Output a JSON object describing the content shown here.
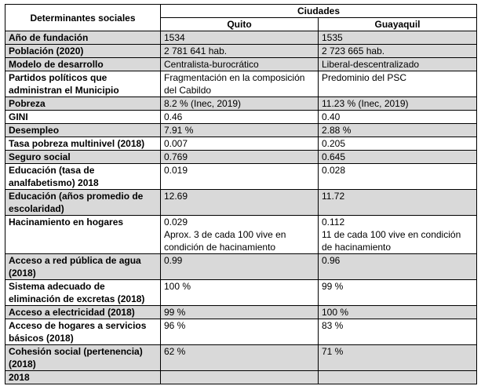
{
  "colors": {
    "row_shade": "#d9d9d9",
    "border": "#000000",
    "text": "#000000"
  },
  "table": {
    "header": {
      "col1": "Determinantes sociales",
      "group": "Ciudades",
      "city1": "Quito",
      "city2": "Guayaquil"
    },
    "rows": [
      {
        "label": "Año de fundación",
        "quito": "1534",
        "guayaquil": "1535"
      },
      {
        "label": "Población (2020)",
        "quito": "2 781 641 hab.",
        "guayaquil": "2 723 665 hab."
      },
      {
        "label": "Modelo de desarrollo",
        "quito": "Centralista-burocrático",
        "guayaquil": "Liberal-descentralizado"
      },
      {
        "label": "Partidos políticos que administran el Municipio",
        "quito": "Fragmentación en la composición del Cabildo",
        "guayaquil": "Predominio del PSC"
      },
      {
        "label": "Pobreza",
        "quito": "8.2 % (Inec, 2019)",
        "guayaquil": "11.23 % (Inec, 2019)"
      },
      {
        "label": "GINI",
        "quito": "0.46",
        "guayaquil": "0.40"
      },
      {
        "label": "Desempleo",
        "quito": "7.91 %",
        "guayaquil": "2.88 %"
      },
      {
        "label": "Tasa pobreza multinivel (2018)",
        "quito": "0.007",
        "guayaquil": "0.205"
      },
      {
        "label": "Seguro social",
        "quito": "0.769",
        "guayaquil": "0.645"
      },
      {
        "label": "Educación (tasa de analfabetismo) 2018",
        "quito": "0.019",
        "guayaquil": "0.028"
      },
      {
        "label": "Educación (años promedio de escolaridad)",
        "quito": "12.69",
        "guayaquil": "11.72"
      },
      {
        "label": "Hacinamiento en hogares",
        "quito": "0.029\nAprox. 3 de cada 100 vive en condición de hacinamiento",
        "guayaquil": "0.112\n11 de cada 100 vive en condición de hacinamiento"
      },
      {
        "label": "Acceso a red pública de agua (2018)",
        "quito": "0.99",
        "guayaquil": "0.96"
      },
      {
        "label": "Sistema adecuado de eliminación de excretas (2018)",
        "quito": "100 %",
        "guayaquil": "99 %"
      },
      {
        "label": "Acceso a electricidad (2018)",
        "quito": "99 %",
        "guayaquil": "100 %"
      },
      {
        "label": "Acceso de hogares a servicios básicos (2018)",
        "quito": "96 %",
        "guayaquil": "83 %"
      },
      {
        "label": "Cohesión social (pertenencia) (2018)",
        "quito": "62 %",
        "guayaquil": "71 %"
      },
      {
        "label": "2018",
        "quito": "",
        "guayaquil": ""
      }
    ]
  }
}
